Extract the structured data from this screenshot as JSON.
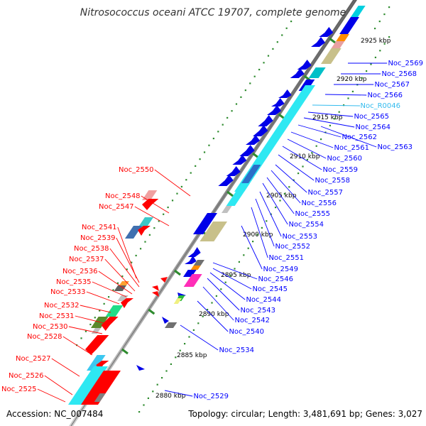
{
  "title": "Nitrosococcus oceani ATCC 19707, complete genome",
  "accession": "Accession: NC_007484",
  "summary": "Topology: circular; Length: 3,481,691 bp; Genes: 3,027",
  "colors": {
    "forward_label": "#0000ff",
    "reverse_label": "#ff0000",
    "rna_label": "#33bbee",
    "backbone": "#8c8c8c",
    "tick_dots": "#228822"
  },
  "ticks": [
    {
      "label": "2925 kbp"
    },
    {
      "label": "2920 kbp"
    },
    {
      "label": "2915 kbp"
    },
    {
      "label": "2910 kbp"
    },
    {
      "label": "2905 kbp"
    },
    {
      "label": "2900 kbp"
    },
    {
      "label": "2895 kbp"
    },
    {
      "label": "2890 kbp"
    },
    {
      "label": "2885 kbp"
    },
    {
      "label": "2880 kbp"
    }
  ],
  "forward_genes": [
    {
      "label": "Noc_2569"
    },
    {
      "label": "Noc_2568"
    },
    {
      "label": "Noc_2567"
    },
    {
      "label": "Noc_2566"
    },
    {
      "label": "Noc_R0046"
    },
    {
      "label": "Noc_2565"
    },
    {
      "label": "Noc_2564"
    },
    {
      "label": "Noc_2562"
    },
    {
      "label": "Noc_2563"
    },
    {
      "label": "Noc_2561"
    },
    {
      "label": "Noc_2560"
    },
    {
      "label": "Noc_2559"
    },
    {
      "label": "Noc_2558"
    },
    {
      "label": "Noc_2557"
    },
    {
      "label": "Noc_2556"
    },
    {
      "label": "Noc_2555"
    },
    {
      "label": "Noc_2554"
    },
    {
      "label": "Noc_2553"
    },
    {
      "label": "Noc_2552"
    },
    {
      "label": "Noc_2551"
    },
    {
      "label": "Noc_2549"
    },
    {
      "label": "Noc_2546"
    },
    {
      "label": "Noc_2545"
    },
    {
      "label": "Noc_2544"
    },
    {
      "label": "Noc_2543"
    },
    {
      "label": "Noc_2542"
    },
    {
      "label": "Noc_2540"
    },
    {
      "label": "Noc_2534"
    },
    {
      "label": "Noc_2529"
    }
  ],
  "reverse_genes": [
    {
      "label": "Noc_2550"
    },
    {
      "label": "Noc_2548"
    },
    {
      "label": "Noc_2547"
    },
    {
      "label": "Noc_2541"
    },
    {
      "label": "Noc_2539"
    },
    {
      "label": "Noc_2538"
    },
    {
      "label": "Noc_2537"
    },
    {
      "label": "Noc_2536"
    },
    {
      "label": "Noc_2535"
    },
    {
      "label": "Noc_2533"
    },
    {
      "label": "Noc_2532"
    },
    {
      "label": "Noc_2531"
    },
    {
      "label": "Noc_2530"
    },
    {
      "label": "Noc_2528"
    },
    {
      "label": "Noc_2527"
    },
    {
      "label": "Noc_2526"
    },
    {
      "label": "Noc_2525"
    }
  ]
}
